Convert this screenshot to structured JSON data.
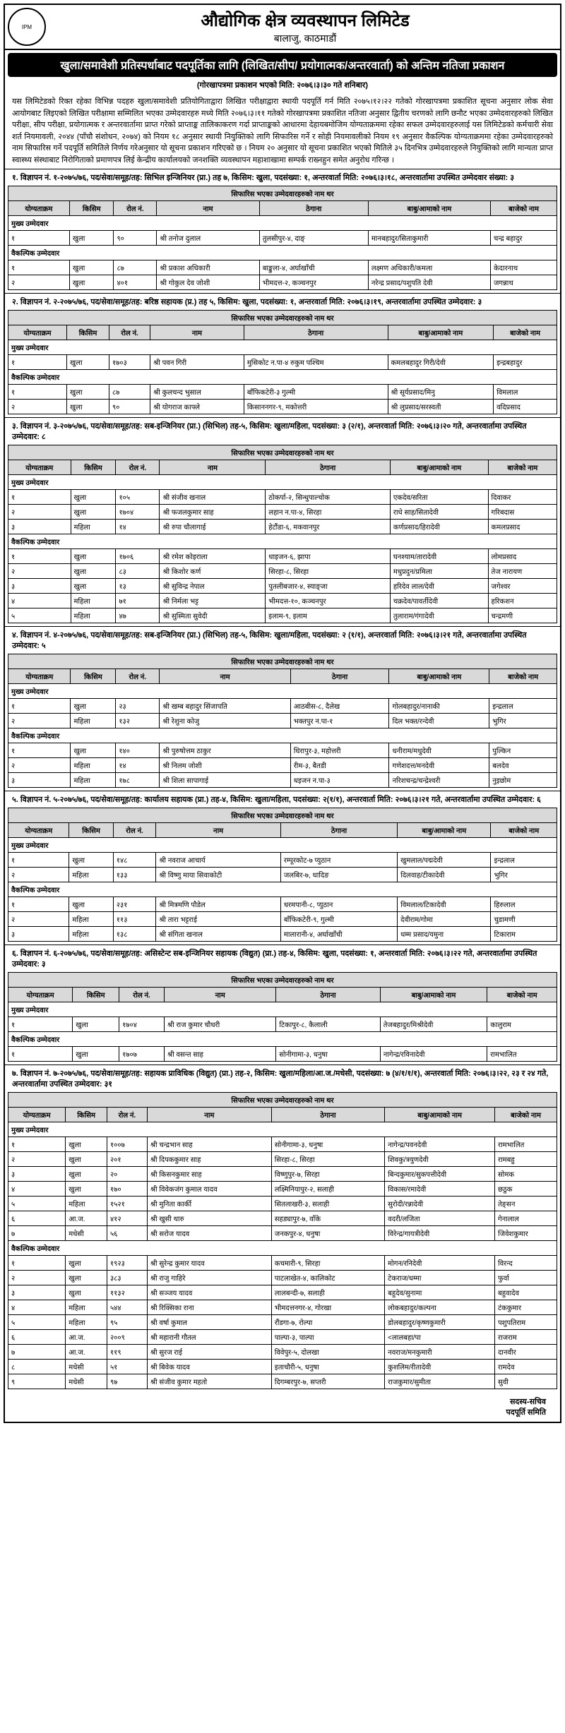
{
  "header": {
    "org": "औद्योगिक क्षेत्र व्यवस्थापन लिमिटेड",
    "loc": "बालाजु, काठमाडौं",
    "logo": "IPM"
  },
  "banner": "खुला/समावेशी प्रतिस्पर्धाबाट पदपूर्तिका लागि (लिखित/सीप/ प्रयोगात्मक/अन्तरवार्ता) को अन्तिम नतिजा प्रकाशन",
  "pubdate": "(गोरखापत्रमा प्रकाशन भएको मिति: २०७६।३।३० गते शनिबार)",
  "intro": "यस लिमिटेडको रिक्त रहेका विभिन्न पदहरु खुला/समावेशी प्रतियोगिताद्वारा लिखित परीक्षाद्वारा स्थायी पदपूर्ति गर्न मिति २०७५।१२।२२ गतेको गोरखापत्रमा प्रकाशित सूचना अनुसार लोक सेवा आयोगबाट लिइएको लिखित परीक्षामा सम्मिलित भएका उम्मेदवारहरु मध्ये मिति २०७६।३।११ गतेको गोरखापत्रमा प्रकाशित नतिजा अनुसार द्वितीय चरणको लागि छनौट भएका उम्मेदवारहरुको लिखित परीक्षा, सीप परीक्षा, प्रयोगात्मक र अन्तरवार्तामा प्राप्त गरेको प्राप्ताङ्क तालिकाकरण गर्दा प्राप्ताङ्कको आधारमा देहायबमोजिम योग्यताक्रममा रहेका सफल उम्मेदवारहरुलाई यस लिमिटेडको कर्मचारी सेवा शर्त नियमावली, २०४४ (पाँचौ संशोधन, २०७४) को नियम १८ अनुसार स्थायी नियुक्तिको लागि सिफारिस गर्ने र सोही नियमावलीको नियम १९ अनुसार वैकल्पिक योग्यताक्रममा रहेका उम्मेदवारहरुको नाम सिफारिस गर्ने पदपूर्ति समितिले निर्णय गरेअनुसार यो सूचना प्रकाशन गरिएको छ । नियम २० अनुसार यो सूचना प्रकाशित भएको मितिले ३५ दिनभित्र उम्मेदवारहरुले नियुक्तिको लागि मान्यता प्राप्त स्वास्थ्य संस्थाबाट निरोगिताको प्रमाणपत्र लिई केन्द्रीय कार्यालयको जनशक्ति व्यवस्थापन महाशाखामा सम्पर्क राख्नहुन समेत अनुरोध गरिन्छ ।",
  "cols": [
    "योग्यताक्रम",
    "किसिम",
    "रोल नं.",
    "नाम",
    "ठेगाना",
    "बाबु/आमाको नाम",
    "बाजेको नाम"
  ],
  "tblTitle": "सिफारिस भएका उम्मेदवारहरुको नाम थर",
  "catMain": "मुख्य उम्मेदवार",
  "catAlt": "वैकल्पिक उम्मेदवार",
  "footer": {
    "l1": "सदस्य-सचिव",
    "l2": "पदपूर्ति समिति"
  },
  "sections": [
    {
      "head": "१. विज्ञापन नं. १-२०७५/७६, पद/सेवा/समूह/तह: सिभिल इन्जिनियर (प्रा.) तह ७, किसिम: खुला, पदसंख्या: १, अन्तरवार्ता मिति: २०७६।३।१८, अन्तरवार्तामा उपस्थित उम्मेदवार संख्या: ३",
      "main": [
        [
          "१",
          "खुला",
          "९०",
          "श्री तनोज दुलाल",
          "तुलसीपुर-४, दाङ्",
          "मानबहादुर/सिताकुमारी",
          "चन्द्र बहादुर"
        ]
      ],
      "alt": [
        [
          "१",
          "खुला",
          "८७",
          "श्री प्रकाश अधिकारी",
          "बाङ्कुला-४, अर्घाखाँची",
          "लक्ष्मण अधिकारी/कमला",
          "केदारनाथ"
        ],
        [
          "२",
          "खुला",
          "४०१",
          "श्री गोकुल देव जोशी",
          "भीमदत्त-२, कञ्चनपुर",
          "नरेन्द्र प्रसाद/पशुपति देवी",
          "जगन्नाथ"
        ]
      ]
    },
    {
      "head": "२. विज्ञापन नं. २-२०७५/७६, पद/सेवा/समूह/तह: बरिष्ठ सहायक (प्र.) तह ५, किसिम: खुला, पदसंख्या: १, अन्तरवार्ता मिति: २०७६।३।१९, अन्तरवार्तामा उपस्थित उम्मेदवार: ३",
      "main": [
        [
          "१",
          "खुला",
          "१७०३",
          "श्री पवन गिरी",
          "मुसिकोट न.पा-४ रुकुम पश्चिम",
          "कमलबहादुर गिरी/देवी",
          "इन्द्रबहादुर"
        ]
      ],
      "alt": [
        [
          "१",
          "खुला",
          "८७",
          "श्री कुलचन्द भुसाल",
          "बाँफिकटेरी-३ गुल्मी",
          "श्री सूर्यप्रसाद/मिनु",
          "विमलाल"
        ],
        [
          "२",
          "खुला",
          "९०",
          "श्री योगराज काफ्ले",
          "किसाननगर-९, मकोत्तरी",
          "श्री लुप्रसाद/सरस्वती",
          "वदिप्रसाद"
        ]
      ]
    },
    {
      "head": "३. विज्ञापन नं. ३-२०७५/७६, पद/सेवा/समूह/तह: सब-इन्जिनियर (प्रा.) (सिभिल) तह-५, किसिम: खुला/महिला, पदसंख्या: ३ (२/१), अन्तरवार्ता मिति: २०७६।३।२० गते, अन्तरवार्तामा उपस्थित उम्मेदवार: ८",
      "main": [
        [
          "१",
          "खुला",
          "१०५",
          "श्री संजीव खनाल",
          "ठोकर्पा-२, सिन्धुपाल्चोक",
          "एकदेव/सरिता",
          "दिवाकर"
        ],
        [
          "२",
          "खुला",
          "१७०४",
          "श्री फजलकुमार साह",
          "लहान न.पा-४, सिरहा",
          "राधे साह/सितादेवी",
          "गरिबदास"
        ],
        [
          "३",
          "महिला",
          "१४",
          "श्री रुपा चौलागाई",
          "हेटौंडा-६, मकवानपुर",
          "कर्णप्रसाद/हिरादेवी",
          "कमलप्रसाद"
        ]
      ],
      "alt": [
        [
          "१",
          "खुला",
          "१७०६",
          "श्री रमेश कोइराला",
          "धाइजन-६, झापा",
          "घनश्याम/तारादेवी",
          "लोमप्रसाद"
        ],
        [
          "२",
          "खुला",
          "८३",
          "श्री किशोर कर्ण",
          "सिरहा-८, सिरहा",
          "मधुप्रदुन/प्रमिला",
          "तेज नारायण"
        ],
        [
          "३",
          "खुला",
          "१३",
          "श्री सुविन्द्र नेपाल",
          "पुतलीबजार-४, स्याङ्जा",
          "हरिदेव लाल/देवी",
          "जगेश्वर"
        ],
        [
          "४",
          "महिला",
          "७१",
          "श्री निर्मला भट्ट",
          "भीमदत्त-१०, कञ्चनपुर",
          "चक्रदेव/पावर्तीदेवी",
          "हरिकशन"
        ],
        [
          "५",
          "महिला",
          "४७",
          "श्री सुस्मिता सुवेदी",
          "इलाम-९, इलाम",
          "तुलाराम/गंगादेवी",
          "चन्द्रमणी"
        ]
      ]
    },
    {
      "head": "४. विज्ञापन नं. ४-२०७५/७६, पद/सेवा/समूह/तह: सब-इन्जिनियर (प्रा.) (सिभिल) तह-५, किसिम: खुला/महिला, पदसंख्या: २ (१/१), अन्तरवार्ता मिति: २०७६।३।२१ गते, अन्तरवार्तामा उपस्थित उम्मेदवार: ५",
      "main": [
        [
          "१",
          "खुला",
          "२३",
          "श्री खम्ब बहादुर सिंजापति",
          "आठबीस-८, दैलेख",
          "गोलबहादुर/नानाकी",
          "इन्द्रलाल"
        ],
        [
          "२",
          "महिला",
          "१३२",
          "श्री रेशुना कोजु",
          "भक्तपुर न.पा-१",
          "दिल भक्त/रन्देवी",
          "भुगिर"
        ]
      ],
      "alt": [
        [
          "१",
          "खुला",
          "१४०",
          "श्री पुरुषोत्तम ठाकुर",
          "धिरापुर-३, महोत्तरी",
          "धनीराम/मधुदेवी",
          "पुल्किन"
        ],
        [
          "२",
          "महिला",
          "१४",
          "श्री निलम जोशी",
          "रीम-३, बैतडी",
          "गणेशदत्त/मनदेवी",
          "बलदेव"
        ],
        [
          "३",
          "महिला",
          "१७८",
          "श्री शिला सापागाई",
          "धइजन न.पा-३",
          "नरिशचन्द्र/चन्द्रेश्वरी",
          "नुइछोम"
        ]
      ]
    },
    {
      "head": "५. विज्ञापन नं. ५-२०७५/७६, पद/सेवा/समूह/तह: कार्यालय सहायक (प्रा.) तह-४, किसिम: खुला/महिला, पदसंख्या: २(१/१), अन्तरवार्ता मिति: २०७६।३।२१ गते, अन्तरवार्तामा उपस्थित उम्मेदवार: ६",
      "main": [
        [
          "१",
          "खुला",
          "१४८",
          "श्री नवराज आचार्य",
          "रम्पूरकोट-७ प्युठान",
          "खुमलाल/पद्मदेवी",
          "इन्द्रलाल"
        ],
        [
          "२",
          "महिला",
          "१३३",
          "श्री विष्णु माया सिवाकोटी",
          "जलबिर-७, धादिङ",
          "दिलवाह/टीकादेवी",
          "भुगिर"
        ]
      ],
      "alt": [
        [
          "१",
          "खुला",
          "२३१",
          "श्री मित्रमणि पौडेल",
          "धरमपानी-८, प्युठान",
          "विमलाल/टिकादेवी",
          "हिरुलाल"
        ],
        [
          "२",
          "महिला",
          "११३",
          "श्री तारा भट्टराई",
          "बाँफिकटेरी-९, गुल्मी",
          "देवीराम/गोमा",
          "चुडामणी"
        ],
        [
          "३",
          "महिला",
          "१३८",
          "श्री संगिता खनाल",
          "मालारानी-४, अर्घाखाँची",
          "धम्म प्रसाद/यमुना",
          "टिकाराम"
        ]
      ]
    },
    {
      "head": "६. विज्ञापन नं. ६-२०७५/७६, पद/सेवा/समूह/तह: असिस्टेन्ट सब-इन्जिनियर सहायक (विद्युत) (प्रा.) तह-४, किसिम: खुला, पदसंख्या: १, अन्तरवार्ता मिति: २०७६।३।२२ गते, अन्तरवार्तामा उपस्थित उम्मेदवार: ३",
      "main": [
        [
          "१",
          "खुला",
          "१७०४",
          "श्री राज कुमार चौधरी",
          "टिकापुर-८, कैलाली",
          "तेजबहादुर/मिश्रीदेवी",
          "कालुराम"
        ]
      ],
      "alt": [
        [
          "१",
          "खुला",
          "१७०७",
          "श्री वसन्त साह",
          "सोनीगामा-३, धनुषा",
          "नागेन्द्र/रविनादेवी",
          "रामभालित"
        ]
      ]
    },
    {
      "head": "७. विज्ञापन नं. ७-२०७५/७६, पद/सेवा/समूह/तह: सहायक प्राविधिक (विद्युत) (प्रा.) तह-२, किसिम: खुला/महिला/आ.ज./मधेसी, पदसंख्या: ७ (४/१/१/१), अन्तरवार्ता मिति: २०७६।३।२२, २३ र २४ गते, अन्तरवार्तामा उपस्थित उम्मेदवार: ३१",
      "main": [
        [
          "१",
          "खुला",
          "१००७",
          "श्री चन्द्रभान साह",
          "सोनीगामा-३, धनुषा",
          "नागेन्द्र/पवनदेवी",
          "रामभालित"
        ],
        [
          "२",
          "खुला",
          "२०१",
          "श्री दिपककुमार साह",
          "सिरहा-८, सिरहा",
          "शिवकु/त्रयुणदेवी",
          "रामबहु"
        ],
        [
          "३",
          "खुला",
          "२०",
          "श्री किसनकुमार साह",
          "विष्णुपुर-७, सिरहा",
          "बिन्दकुमार/सुकपत्तीदेवी",
          "सोमक"
        ],
        [
          "४",
          "खुला",
          "१७०",
          "श्री विवेकजंग कुमाल यादव",
          "लक्ष्मिनियापुर-२, सलाही",
          "विकास/रमादेवी",
          "छठुक"
        ],
        [
          "५",
          "महिला",
          "१५२१",
          "श्री मुनिता कार्की",
          "सितलाखरी-३, सलाही",
          "सुरोदी/रन्नादेवी",
          "तेङ्सन"
        ],
        [
          "६",
          "आ.ज.",
          "४१२",
          "श्री खुसी थारु",
          "सहड्यापुर-७, वाँके",
          "वदरी/लजिता",
          "गेनालाल"
        ],
        [
          "७",
          "मधेसी",
          "५६",
          "श्री सरोज यादव",
          "जनकपुर-४, धनुषा",
          "विरेन्द्र/गायत्रीदेवी",
          "जिवेशकुमार"
        ]
      ],
      "alt": [
        [
          "१",
          "खुला",
          "१९२३",
          "श्री सुरेन्द्र कुमार यादव",
          "कचमारी-९, सिरहा",
          "मोगन/रनिदेवी",
          "विरन्द"
        ],
        [
          "२",
          "खुला",
          "३८३",
          "श्री राजु गाहिरे",
          "पाटलाखेत-४, कालिकोट",
          "टेकराज/धम्मा",
          "फुर्वा"
        ],
        [
          "३",
          "खुला",
          "११३२",
          "श्री सञ्जय यादव",
          "लालबन्दी-७, सलाही",
          "बहुदेव/सुनामा",
          "बहुवादेव"
        ],
        [
          "४",
          "महिला",
          "५४४",
          "श्री रिक्सिका राना",
          "भीमदत्तनगर-४, गोरखा",
          "लोकबहादुर/कल्पना",
          "टंककुमार"
        ],
        [
          "५",
          "महिला",
          "९५",
          "श्री वर्षा कुमाल",
          "रौंडगा-७, रोल्पा",
          "डोलबहादुर/कृष्णकुमारी",
          "पशुपतिराम"
        ],
        [
          "६",
          "आ.ज.",
          "२००९",
          "श्री महारानी गौतल",
          "पाल्पा-३, पाल्पा",
          "<लालबहा/पा",
          "राजराम"
        ],
        [
          "७",
          "आ.ज.",
          "११९",
          "श्री सुरज राई",
          "विवेपुर-५, दोलखा",
          "नवराज/मनकुमारी",
          "दानवीर"
        ],
        [
          "८",
          "मधेसी",
          "५१",
          "श्री बिवेक यादव",
          "इताचौरी-५, धनुषा",
          "कुशलिम/रीतादेवी",
          "रामदेव"
        ],
        [
          "९",
          "मधेसी",
          "९७",
          "श्री संजीव कुमार महतो",
          "दिगम्बरपुर-७, सप्तरी",
          "राजकुमार/सुमीता",
          "सुवी"
        ]
      ]
    }
  ]
}
